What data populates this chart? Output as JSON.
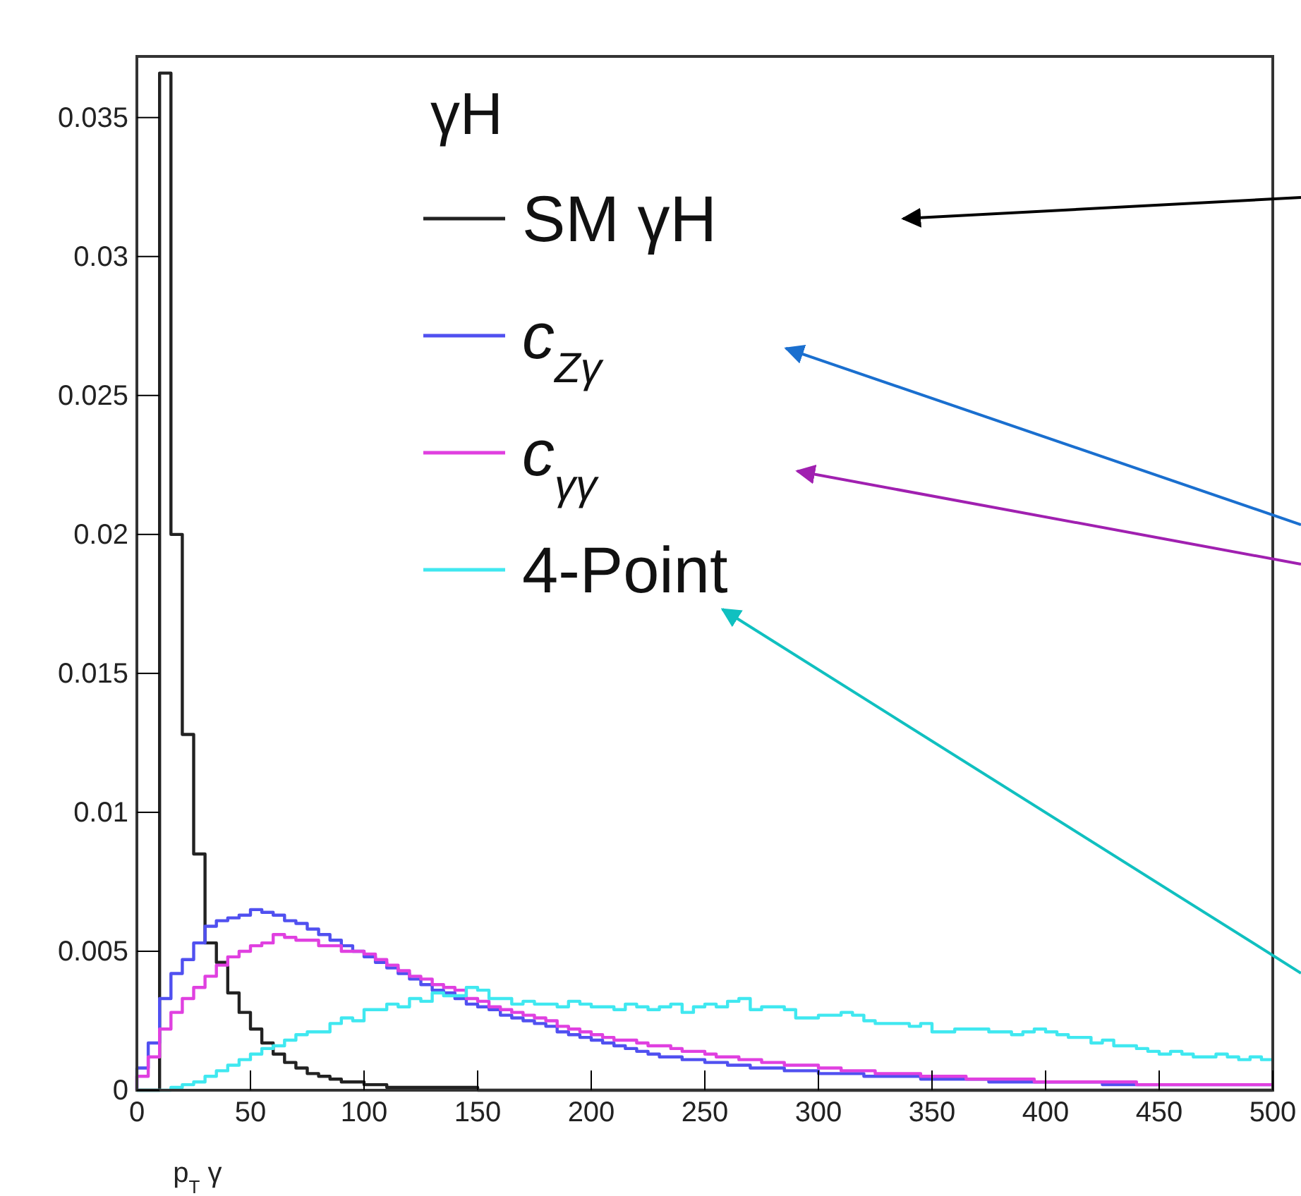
{
  "chart_data": {
    "type": "histogram",
    "xlabel": "p$_{T}$ γ",
    "legend_title": "γH",
    "legend": "top",
    "xlim": [
      0,
      500
    ],
    "xticks": [
      0,
      50,
      100,
      150,
      200,
      250,
      300,
      350,
      400,
      450,
      500
    ],
    "ylim": [
      0,
      0.0372
    ],
    "yticks": [
      0,
      0.005,
      0.01,
      0.015,
      0.02,
      0.025,
      0.03,
      0.035
    ],
    "bins": [
      0,
      5,
      10,
      15,
      20,
      25,
      30,
      35,
      40,
      45,
      50,
      55,
      60,
      65,
      70,
      75,
      80,
      85,
      90,
      95,
      100,
      105,
      110,
      115,
      120,
      125,
      130,
      135,
      140,
      145,
      150,
      155,
      160,
      165,
      170,
      175,
      180,
      185,
      190,
      195,
      200,
      205,
      210,
      215,
      220,
      225,
      230,
      235,
      240,
      245,
      250,
      255,
      260,
      265,
      270,
      275,
      280,
      285,
      290,
      295,
      300,
      305,
      310,
      315,
      320,
      325,
      330,
      335,
      340,
      345,
      350,
      355,
      360,
      365,
      370,
      375,
      380,
      385,
      390,
      395,
      400,
      405,
      410,
      415,
      420,
      425,
      430,
      435,
      440,
      445,
      450,
      455,
      460,
      465,
      470,
      475,
      480,
      485,
      490,
      495,
      500
    ],
    "series": [
      {
        "name": "SM γH",
        "color": "#222222",
        "values": [
          0,
          0,
          0.0366,
          0.02,
          0.0128,
          0.0085,
          0.0053,
          0.0046,
          0.0035,
          0.0028,
          0.0022,
          0.0017,
          0.0013,
          0.001,
          0.0008,
          0.0006,
          0.0005,
          0.0004,
          0.0003,
          0.0003,
          0.0002,
          0.0002,
          0.0001,
          0.0001,
          0.0001,
          0.0001,
          0.0001,
          0.0001,
          0.0001,
          0.0001,
          0,
          0,
          0,
          0,
          0,
          0,
          0,
          0,
          0,
          0,
          0,
          0,
          0,
          0,
          0,
          0,
          0,
          0,
          0,
          0,
          0,
          0,
          0,
          0,
          0,
          0,
          0,
          0,
          0,
          0,
          0,
          0,
          0,
          0,
          0,
          0,
          0,
          0,
          0,
          0,
          0,
          0,
          0,
          0,
          0,
          0,
          0,
          0,
          0,
          0,
          0,
          0,
          0,
          0,
          0,
          0,
          0,
          0,
          0,
          0,
          0,
          0,
          0,
          0,
          0,
          0,
          0,
          0,
          0,
          0
        ]
      },
      {
        "name": "c$_{Zγ}$",
        "color": "#5050f0",
        "values": [
          0.0008,
          0.0017,
          0.0033,
          0.0042,
          0.0047,
          0.0053,
          0.0059,
          0.0061,
          0.0062,
          0.0063,
          0.0065,
          0.0064,
          0.0063,
          0.0061,
          0.006,
          0.0058,
          0.0056,
          0.0054,
          0.0052,
          0.005,
          0.0048,
          0.0046,
          0.0044,
          0.0042,
          0.004,
          0.0038,
          0.0036,
          0.0035,
          0.0033,
          0.0031,
          0.003,
          0.0029,
          0.0027,
          0.0026,
          0.0025,
          0.0024,
          0.0023,
          0.0021,
          0.002,
          0.0019,
          0.0018,
          0.0017,
          0.0016,
          0.0015,
          0.0014,
          0.0013,
          0.0012,
          0.0012,
          0.0011,
          0.0011,
          0.001,
          0.001,
          0.0009,
          0.0009,
          0.0008,
          0.0008,
          0.0008,
          0.0007,
          0.0007,
          0.0007,
          0.0006,
          0.0006,
          0.0006,
          0.0006,
          0.0005,
          0.0005,
          0.0005,
          0.0005,
          0.0005,
          0.0004,
          0.0004,
          0.0004,
          0.0004,
          0.0004,
          0.0004,
          0.0003,
          0.0003,
          0.0003,
          0.0003,
          0.0003,
          0.0003,
          0.0003,
          0.0003,
          0.0003,
          0.0003,
          0.0002,
          0.0002,
          0.0002,
          0.0002,
          0.0002,
          0.0002,
          0.0002,
          0.0002,
          0.0002,
          0.0002,
          0.0002,
          0.0002,
          0.0002,
          0.0002,
          0.0002
        ]
      },
      {
        "name": "c$_{γγ}$",
        "color": "#e040e0",
        "values": [
          0.0005,
          0.0012,
          0.0022,
          0.0028,
          0.0033,
          0.0037,
          0.0041,
          0.0045,
          0.0048,
          0.005,
          0.0052,
          0.0053,
          0.0056,
          0.0055,
          0.0054,
          0.0054,
          0.0052,
          0.0052,
          0.005,
          0.005,
          0.0049,
          0.0047,
          0.0045,
          0.0043,
          0.0041,
          0.004,
          0.0038,
          0.0037,
          0.0036,
          0.0033,
          0.0032,
          0.003,
          0.0029,
          0.0028,
          0.0027,
          0.0026,
          0.0025,
          0.0023,
          0.0022,
          0.0021,
          0.002,
          0.0019,
          0.0018,
          0.0018,
          0.0017,
          0.0016,
          0.0016,
          0.0015,
          0.0014,
          0.0014,
          0.0013,
          0.0012,
          0.0012,
          0.0011,
          0.0011,
          0.001,
          0.001,
          0.0009,
          0.0009,
          0.0009,
          0.0008,
          0.0008,
          0.0007,
          0.0007,
          0.0007,
          0.0006,
          0.0006,
          0.0006,
          0.0006,
          0.0005,
          0.0005,
          0.0005,
          0.0005,
          0.0004,
          0.0004,
          0.0004,
          0.0004,
          0.0004,
          0.0004,
          0.0003,
          0.0003,
          0.0003,
          0.0003,
          0.0003,
          0.0003,
          0.0003,
          0.0003,
          0.0003,
          0.0002,
          0.0002,
          0.0002,
          0.0002,
          0.0002,
          0.0002,
          0.0002,
          0.0002,
          0.0002,
          0.0002,
          0.0002,
          0.0002
        ]
      },
      {
        "name": "4-Point",
        "color": "#40e8f0",
        "values": [
          0,
          0,
          0,
          0.0001,
          0.0002,
          0.0003,
          0.0005,
          0.0007,
          0.0009,
          0.0011,
          0.0013,
          0.0015,
          0.0016,
          0.0018,
          0.002,
          0.0021,
          0.0021,
          0.0024,
          0.0026,
          0.0025,
          0.0029,
          0.0029,
          0.0031,
          0.003,
          0.0033,
          0.0032,
          0.0035,
          0.0034,
          0.0034,
          0.0037,
          0.0036,
          0.0033,
          0.0033,
          0.0031,
          0.0032,
          0.0031,
          0.0031,
          0.003,
          0.0032,
          0.0031,
          0.003,
          0.003,
          0.0029,
          0.0031,
          0.003,
          0.0029,
          0.003,
          0.0031,
          0.0028,
          0.003,
          0.0031,
          0.003,
          0.0032,
          0.0033,
          0.0029,
          0.003,
          0.003,
          0.0029,
          0.0026,
          0.0026,
          0.0027,
          0.0027,
          0.0028,
          0.0027,
          0.0025,
          0.0024,
          0.0024,
          0.0024,
          0.0023,
          0.0024,
          0.0021,
          0.0021,
          0.0022,
          0.0022,
          0.0022,
          0.0021,
          0.0021,
          0.002,
          0.0021,
          0.0022,
          0.0021,
          0.002,
          0.0019,
          0.0019,
          0.0017,
          0.0018,
          0.0016,
          0.0016,
          0.0015,
          0.0014,
          0.0013,
          0.0014,
          0.0013,
          0.0012,
          0.0012,
          0.0013,
          0.0012,
          0.0011,
          0.0012,
          0.0011
        ]
      }
    ]
  }
}
